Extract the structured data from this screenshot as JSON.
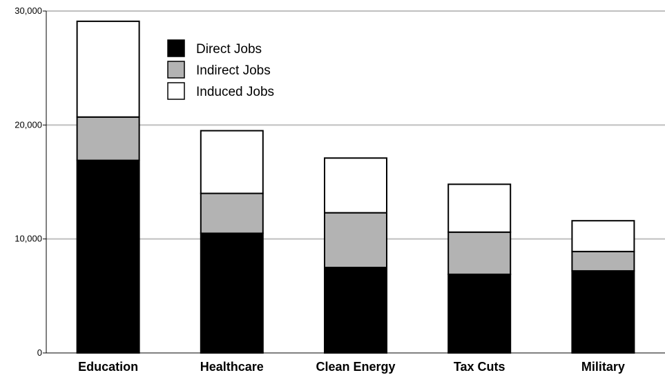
{
  "chart_data": {
    "type": "bar",
    "stacked": true,
    "categories": [
      "Education",
      "Healthcare",
      "Clean Energy",
      "Tax Cuts",
      "Military"
    ],
    "series": [
      {
        "name": "Direct Jobs",
        "color": "#000000",
        "values": [
          16900,
          10500,
          7500,
          6900,
          7200
        ]
      },
      {
        "name": "Indirect Jobs",
        "color": "#b3b3b3",
        "values": [
          3800,
          3500,
          4800,
          3700,
          1700
        ]
      },
      {
        "name": "Induced Jobs",
        "color": "#ffffff",
        "values": [
          8400,
          5500,
          4800,
          4200,
          2700
        ]
      }
    ],
    "ylim": [
      0,
      30000
    ],
    "yticks": [
      "0",
      "10,000",
      "20,000",
      "30,000"
    ],
    "grid": true,
    "legend_position": "top-left"
  }
}
